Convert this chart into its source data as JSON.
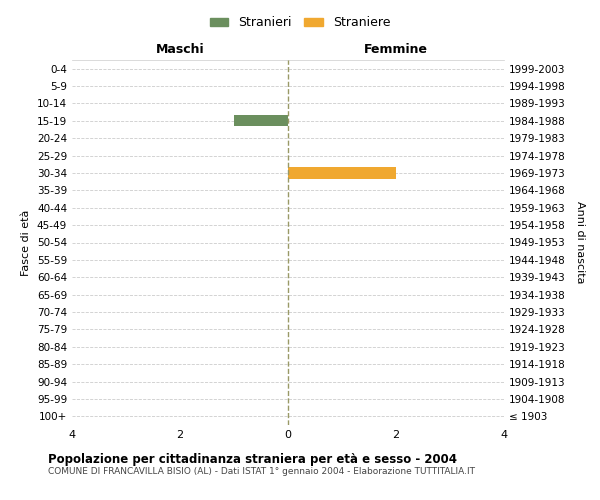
{
  "age_groups": [
    "100+",
    "95-99",
    "90-94",
    "85-89",
    "80-84",
    "75-79",
    "70-74",
    "65-69",
    "60-64",
    "55-59",
    "50-54",
    "45-49",
    "40-44",
    "35-39",
    "30-34",
    "25-29",
    "20-24",
    "15-19",
    "10-14",
    "5-9",
    "0-4"
  ],
  "birth_years": [
    "≤ 1903",
    "1904-1908",
    "1909-1913",
    "1914-1918",
    "1919-1923",
    "1924-1928",
    "1929-1933",
    "1934-1938",
    "1939-1943",
    "1944-1948",
    "1949-1953",
    "1954-1958",
    "1959-1963",
    "1964-1968",
    "1969-1973",
    "1974-1978",
    "1979-1983",
    "1984-1988",
    "1989-1993",
    "1994-1998",
    "1999-2003"
  ],
  "males": [
    0,
    0,
    0,
    0,
    0,
    0,
    0,
    0,
    0,
    0,
    0,
    0,
    0,
    0,
    0,
    0,
    0,
    1,
    0,
    0,
    0
  ],
  "females": [
    0,
    0,
    0,
    0,
    0,
    0,
    0,
    0,
    0,
    0,
    0,
    0,
    0,
    0,
    2,
    0,
    0,
    0,
    0,
    0,
    0
  ],
  "male_color": "#6b8f5e",
  "female_color": "#f0a830",
  "male_label": "Stranieri",
  "female_label": "Straniere",
  "xlim": 4,
  "title": "Popolazione per cittadinanza straniera per età e sesso - 2004",
  "subtitle": "COMUNE DI FRANCAVILLA BISIO (AL) - Dati ISTAT 1° gennaio 2004 - Elaborazione TUTTITALIA.IT",
  "ylabel_left": "Fasce di età",
  "ylabel_right": "Anni di nascita",
  "xlabel_left": "Maschi",
  "xlabel_right": "Femmine",
  "xticks": [
    -4,
    -2,
    0,
    2,
    4
  ],
  "xtick_labels": [
    "4",
    "2",
    "0",
    "2",
    "4"
  ],
  "background_color": "#ffffff",
  "grid_color": "#cccccc"
}
